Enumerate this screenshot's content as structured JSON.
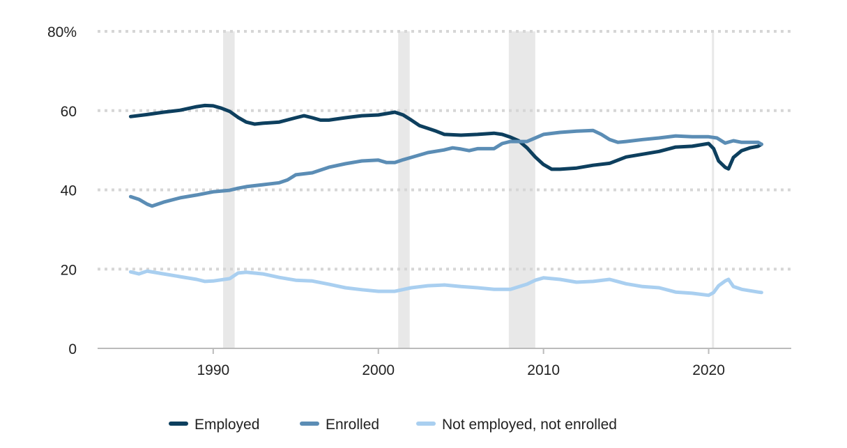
{
  "chart_data": {
    "type": "line",
    "title": "",
    "xlabel": "",
    "ylabel": "",
    "xlim": [
      1983,
      2025
    ],
    "ylim": [
      0,
      80
    ],
    "y_ticks": [
      0,
      20,
      40,
      60,
      80
    ],
    "y_tick_labels": [
      "0",
      "20",
      "40",
      "60",
      "80%"
    ],
    "x_ticks": [
      1990,
      2000,
      2010,
      2020
    ],
    "x_tick_labels": [
      "1990",
      "2000",
      "2010",
      "2020"
    ],
    "grid": "horizontal dotted",
    "legend_position": "bottom",
    "recessions": [
      [
        1990.6,
        1991.3
      ],
      [
        2001.2,
        2001.9
      ],
      [
        2007.9,
        2009.5
      ],
      [
        2020.2,
        2020.3
      ]
    ],
    "series": [
      {
        "name": "Employed",
        "color": "#0d3f5e",
        "x": [
          1985,
          1986,
          1987,
          1988,
          1989,
          1989.5,
          1990,
          1990.5,
          1991,
          1991.5,
          1992,
          1992.5,
          1993,
          1994,
          1995,
          1995.5,
          1996,
          1996.5,
          1997,
          1998,
          1999,
          2000,
          2001,
          2001.5,
          2002,
          2002.5,
          2003,
          2003.5,
          2004,
          2005,
          2006,
          2007,
          2007.5,
          2008,
          2008.5,
          2009,
          2009.5,
          2010,
          2010.5,
          2011,
          2012,
          2013,
          2014,
          2015,
          2016,
          2017,
          2018,
          2019,
          2020,
          2020.3,
          2020.6,
          2021,
          2021.2,
          2021.5,
          2022,
          2022.5,
          2023,
          2023.2
        ],
        "values": [
          58.5,
          59,
          59.6,
          60.1,
          61,
          61.3,
          61.2,
          60.6,
          59.8,
          58.3,
          57.1,
          56.6,
          56.8,
          57.1,
          58.2,
          58.7,
          58.2,
          57.6,
          57.6,
          58.2,
          58.7,
          58.9,
          59.6,
          58.9,
          57.6,
          56.2,
          55.5,
          54.8,
          54,
          53.8,
          54,
          54.3,
          54,
          53.3,
          52.4,
          50.6,
          48.3,
          46.4,
          45.2,
          45.2,
          45.5,
          46.2,
          46.7,
          48.3,
          49,
          49.7,
          50.8,
          51,
          51.7,
          50.4,
          47.3,
          45.7,
          45.3,
          48.2,
          49.9,
          50.6,
          51,
          51.5
        ]
      },
      {
        "name": "Enrolled",
        "color": "#5b8db5",
        "x": [
          1985,
          1985.5,
          1986,
          1986.3,
          1987,
          1988,
          1989,
          1990,
          1991,
          1991.5,
          1992,
          1993,
          1994,
          1994.5,
          1995,
          1996,
          1997,
          1998,
          1999,
          2000,
          2000.5,
          2001,
          2001.5,
          2002,
          2003,
          2004,
          2004.5,
          2005,
          2005.5,
          2006,
          2007,
          2007.5,
          2008,
          2009,
          2010,
          2011,
          2012,
          2013,
          2013.5,
          2014,
          2014.5,
          2015,
          2016,
          2017,
          2018,
          2019,
          2020,
          2020.5,
          2021,
          2021.5,
          2022,
          2023,
          2023.2
        ],
        "values": [
          38.3,
          37.6,
          36.4,
          35.9,
          36.9,
          38,
          38.7,
          39.5,
          39.9,
          40.4,
          40.8,
          41.3,
          41.8,
          42.5,
          43.8,
          44.3,
          45.7,
          46.6,
          47.3,
          47.5,
          46.9,
          46.9,
          47.6,
          48.2,
          49.4,
          50.1,
          50.6,
          50.3,
          49.9,
          50.4,
          50.4,
          51.7,
          52.2,
          52.2,
          54,
          54.5,
          54.8,
          55,
          54,
          52.7,
          52,
          52.2,
          52.7,
          53.1,
          53.6,
          53.4,
          53.4,
          53.1,
          51.8,
          52.4,
          52,
          52,
          51.5
        ]
      },
      {
        "name": "Not employed, not enrolled",
        "color": "#a9cff0",
        "x": [
          1985,
          1985.5,
          1986,
          1987,
          1988,
          1989,
          1989.5,
          1990,
          1991,
          1991.5,
          1992,
          1993,
          1994,
          1995,
          1996,
          1997,
          1998,
          1999,
          2000,
          2001,
          2002,
          2003,
          2004,
          2005,
          2006,
          2007,
          2008,
          2009,
          2009.5,
          2010,
          2011,
          2012,
          2013,
          2014,
          2015,
          2016,
          2017,
          2018,
          2019,
          2020,
          2020.3,
          2020.6,
          2021,
          2021.2,
          2021.5,
          2022,
          2023,
          2023.2
        ],
        "values": [
          19.3,
          18.8,
          19.5,
          18.8,
          18.1,
          17.4,
          16.9,
          17,
          17.6,
          19,
          19.2,
          18.8,
          17.9,
          17.2,
          17,
          16.2,
          15.3,
          14.8,
          14.4,
          14.4,
          15.3,
          15.8,
          16,
          15.6,
          15.3,
          14.9,
          14.9,
          16.2,
          17.2,
          17.8,
          17.4,
          16.7,
          16.9,
          17.4,
          16.3,
          15.6,
          15.3,
          14.2,
          13.9,
          13.4,
          14.1,
          15.8,
          17,
          17.4,
          15.6,
          14.9,
          14.2,
          14.1
        ]
      }
    ]
  }
}
